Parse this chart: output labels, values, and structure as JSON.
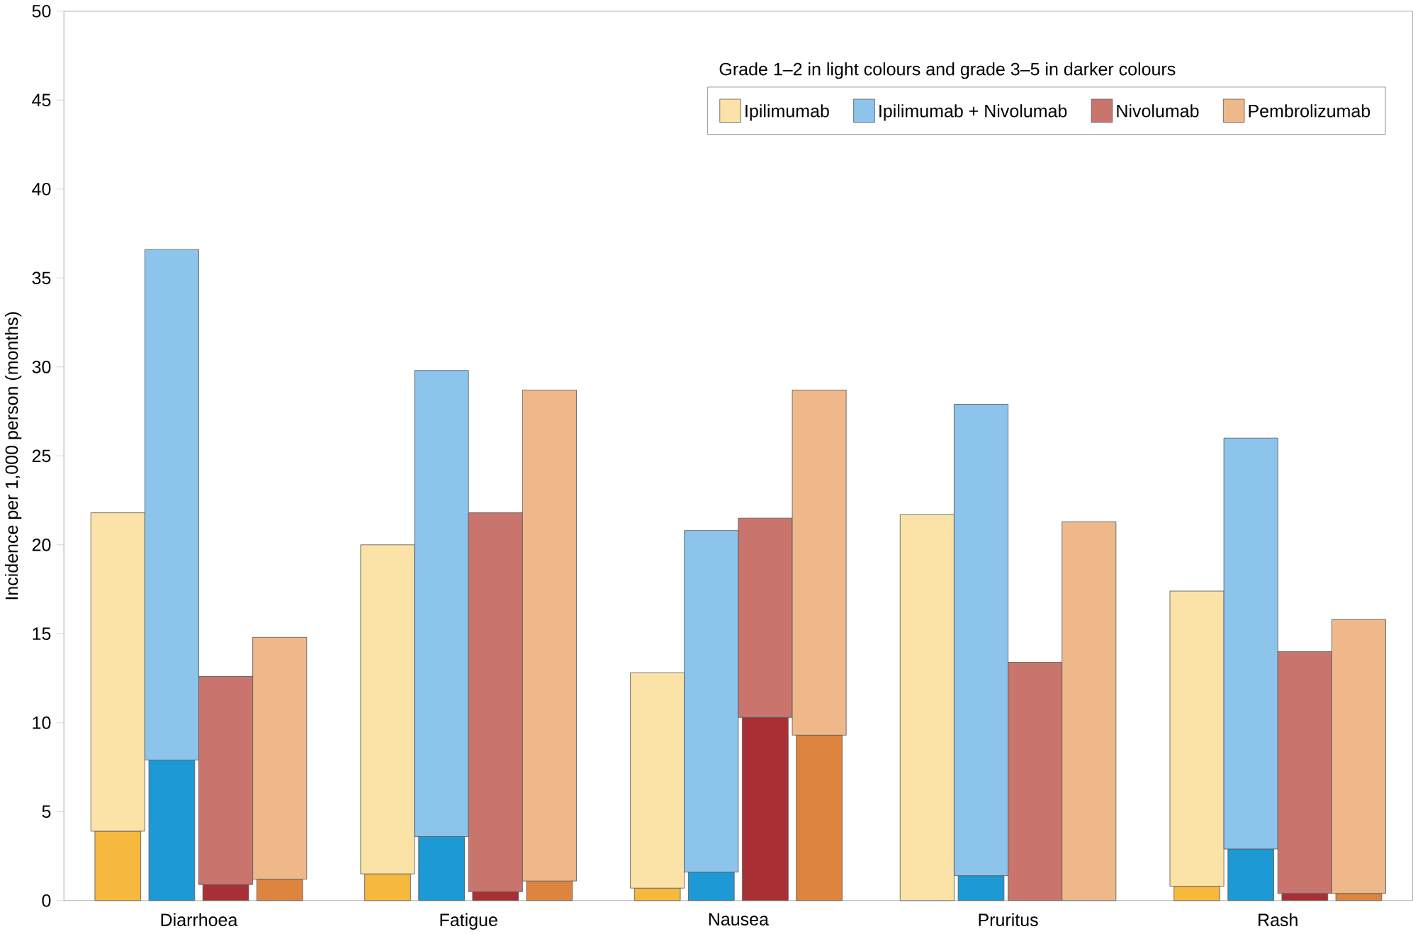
{
  "chart_data": {
    "type": "bar",
    "ylabel": "Incidence per 1,000 person (months)",
    "legend_title": "Grade 1–2 in light colours and grade 3–5 in darker colours",
    "legend": "top right",
    "categories": [
      "Diarrhoea",
      "Fatigue",
      "Nausea",
      "Pruritus",
      "Rash"
    ],
    "ylim": [
      0,
      50
    ],
    "yticks": [
      0,
      5,
      10,
      15,
      20,
      25,
      30,
      35,
      40,
      45,
      50
    ],
    "series": [
      {
        "color": "#f6b93e",
        "values": [
          3.9,
          1.5,
          0.7,
          0,
          0.8
        ]
      },
      {
        "name": "Ipilimumab",
        "color": "#fbe3a8",
        "values": [
          17.9,
          18.5,
          12.1,
          21.7,
          16.6
        ],
        "base": [
          3.9,
          1.5,
          0.7,
          0,
          0.8
        ]
      },
      {
        "color": "#1d9ad6",
        "values": [
          7.9,
          3.6,
          1.6,
          1.4,
          2.9
        ]
      },
      {
        "name": "Ipilimumab + Nivolumab",
        "color": "#8cc4ec",
        "values": [
          28.7,
          26.2,
          19.2,
          26.5,
          23.1
        ],
        "base": [
          7.9,
          3.6,
          1.6,
          1.4,
          2.9
        ]
      },
      {
        "color": "#a83034",
        "values": [
          0.9,
          0.5,
          10.3,
          0,
          0.4
        ]
      },
      {
        "name": "Nivolumab",
        "color": "#c9756e",
        "values": [
          11.7,
          21.3,
          11.2,
          13.4,
          13.6
        ],
        "base": [
          0.9,
          0.5,
          10.3,
          0,
          0.4
        ]
      },
      {
        "color": "#dd843e",
        "values": [
          1.2,
          1.1,
          9.3,
          0,
          0.4
        ]
      },
      {
        "name": "Pembrolizumab",
        "color": "#eeb88a",
        "values": [
          13.6,
          27.6,
          19.4,
          21.3,
          15.4
        ],
        "base": [
          1.2,
          1.1,
          9.3,
          0,
          0.4
        ]
      }
    ]
  }
}
